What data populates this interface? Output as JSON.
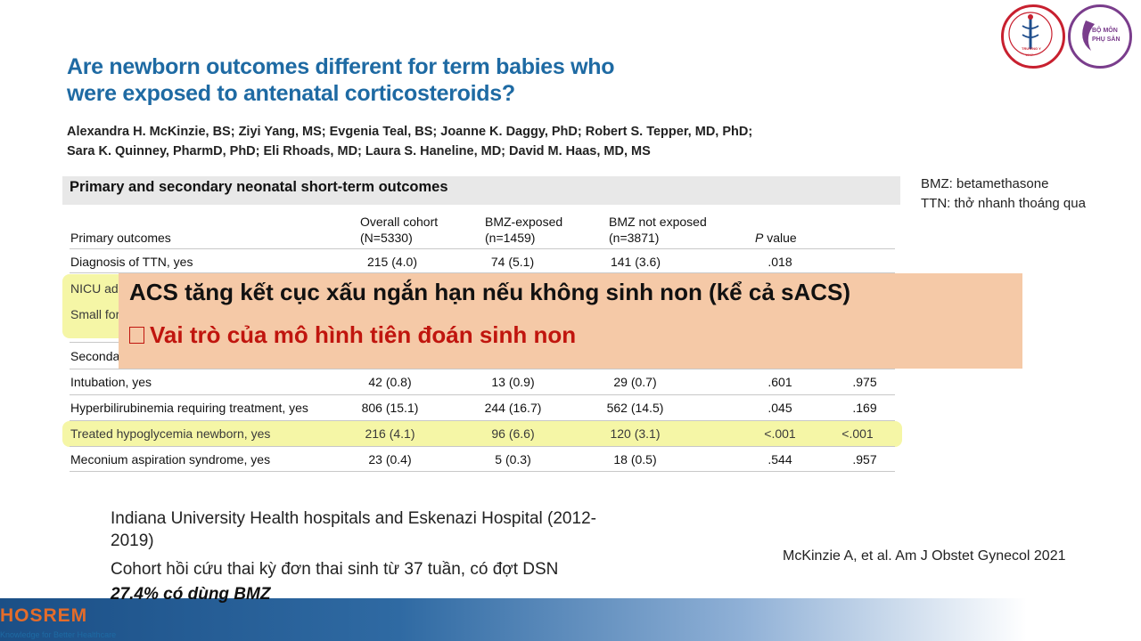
{
  "slide": {
    "title_line1": "Are newborn outcomes different for term babies who",
    "title_line2": "were exposed to antenatal corticosteroids?",
    "authors_line1": "Alexandra H. McKinzie, BS; Ziyi Yang, MS; Evgenia Teal, BS; Joanne K. Daggy, PhD; Robert S. Tepper, MD, PhD;",
    "authors_line2": "Sara K. Quinney, PharmD, PhD; Eli Rhoads, MD; Laura S. Haneline, MD; David M. Haas, MD, MS"
  },
  "table": {
    "caption": "Primary and secondary neonatal short-term outcomes",
    "col_outcomes": "Primary outcomes",
    "col_overall_1": "Overall cohort",
    "col_overall_2": "(N=5330)",
    "col_bmz_1": "BMZ-exposed",
    "col_bmz_2": "(n=1459)",
    "col_notbmz_1": "BMZ not exposed",
    "col_notbmz_2": "(n=3871)",
    "col_p_italic": "P",
    "col_p_rest": " value",
    "row_ttn": {
      "label": "Diagnosis of TTN, yes",
      "overall": "215 (4.0)",
      "bmz": "74 (5.1)",
      "notbmz": "141 (3.6)",
      "p": ".018"
    },
    "row_nicu_partial": "NICU adr",
    "row_small_partial": "Small for",
    "row_second_partial": "Seconda",
    "rows": [
      {
        "label": "Intubation, yes",
        "overall": "42 (0.8)",
        "bmz": "13 (0.9)",
        "notbmz": "29 (0.7)",
        "p": ".601",
        "p2": ".975"
      },
      {
        "label": "Hyperbilirubinemia requiring treatment, yes",
        "overall": "806 (15.1)",
        "bmz": "244 (16.7)",
        "notbmz": "562 (14.5)",
        "p": ".045",
        "p2": ".169"
      },
      {
        "label": "Treated hypoglycemia newborn, yes",
        "overall": "216 (4.1)",
        "bmz": "96 (6.6)",
        "notbmz": "120 (3.1)",
        "p": "<.001",
        "p2": "<.001"
      },
      {
        "label": "Meconium aspiration syndrome, yes",
        "overall": "23 (0.4)",
        "bmz": "5 (0.3)",
        "notbmz": "18 (0.5)",
        "p": ".544",
        "p2": ".957"
      }
    ]
  },
  "overlay": {
    "line1": "ACS tăng kết cục xấu ngắn hạn nếu không sinh non (kể cả sACS)",
    "line2": "Vai trò của mô hình tiên đoán sinh non"
  },
  "definitions": {
    "bmz": "BMZ: betamethasone",
    "ttn": "TTN: thở nhanh thoáng qua"
  },
  "cohort": {
    "line1": "Indiana University Health hospitals and Eskenazi Hospital (2012-",
    "line2": "2019)",
    "line3": "Cohort hồi cứu thai kỳ đơn thai sinh từ 37 tuần, có đợt DSN",
    "line4": "27.4% có dùng BMZ"
  },
  "citation": "McKinzie A, et al. Am J Obstet Gynecol 2021",
  "footer": {
    "logo": "HOSREM",
    "tagline": "Knowledge for Better Healthcare"
  },
  "logos": {
    "seal_right_text": "BỘ MÔN PHỤ SẢN",
    "seal_left_text": "TRƯỜNG Y",
    "seal_left_year": "1947"
  },
  "colors": {
    "title": "#1e6aa3",
    "highlight": "#f5f6a6",
    "overlay_bg": "#f5c9a7",
    "overlay_red": "#c0150e",
    "logo_orange": "#e46c2a"
  }
}
